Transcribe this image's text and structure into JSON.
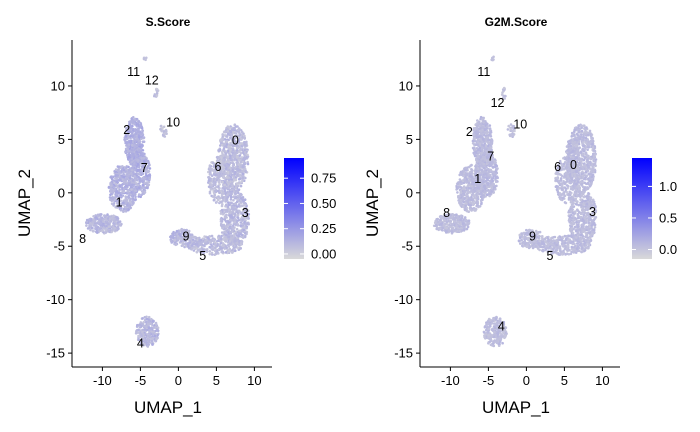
{
  "colors": {
    "low": "#d9d9d9",
    "high": "#0000ff",
    "axis": "#000000",
    "background": "#ffffff"
  },
  "chart_data": [
    {
      "type": "scatter",
      "title": "S.Score",
      "xlabel": "UMAP_1",
      "ylabel": "UMAP_2",
      "xlim": [
        -14,
        11
      ],
      "ylim": [
        -16.3,
        14.3
      ],
      "xticks": [
        -10,
        -5,
        0,
        5,
        10
      ],
      "yticks": [
        10,
        5,
        0,
        -5,
        -10,
        -15
      ],
      "grid": false,
      "color_scale": {
        "name": "S.Score",
        "min": -0.05,
        "max": 0.95,
        "ticks": [
          "0.75",
          "0.50",
          "0.25",
          "0.00"
        ],
        "tick_values": [
          0.75,
          0.5,
          0.25,
          0.0
        ]
      },
      "cluster_labels": [
        {
          "label": "0",
          "x": 7.5,
          "y": 4.9
        },
        {
          "label": "1",
          "x": -7.8,
          "y": -0.9
        },
        {
          "label": "2",
          "x": -6.8,
          "y": 5.9
        },
        {
          "label": "3",
          "x": 8.8,
          "y": -1.9
        },
        {
          "label": "4",
          "x": -5.0,
          "y": -14.1
        },
        {
          "label": "5",
          "x": 3.2,
          "y": -5.9
        },
        {
          "label": "6",
          "x": 5.2,
          "y": 2.4
        },
        {
          "label": "7",
          "x": -4.5,
          "y": 2.3
        },
        {
          "label": "8",
          "x": -12.6,
          "y": -4.3
        },
        {
          "label": "9",
          "x": 1.0,
          "y": -4.1
        },
        {
          "label": "10",
          "x": -0.7,
          "y": 6.6
        },
        {
          "label": "11",
          "x": -5.9,
          "y": 11.3
        },
        {
          "label": "12",
          "x": -3.5,
          "y": 10.5
        }
      ],
      "clusters": [
        {
          "id": "0",
          "cx": 7.2,
          "cy": 3.2,
          "rx": 2.0,
          "ry": 3.2,
          "n": 650,
          "value": 0.08
        },
        {
          "id": "6",
          "cx": 5.4,
          "cy": 1.2,
          "rx": 1.6,
          "ry": 2.2,
          "n": 260,
          "value": 0.07
        },
        {
          "id": "3",
          "cx": 7.4,
          "cy": -2.4,
          "rx": 1.9,
          "ry": 2.6,
          "n": 430,
          "value": 0.09
        },
        {
          "id": "5",
          "cx": 4.8,
          "cy": -4.9,
          "rx": 3.6,
          "ry": 0.9,
          "n": 300,
          "value": 0.08
        },
        {
          "id": "9",
          "cx": 0.6,
          "cy": -4.3,
          "rx": 1.7,
          "ry": 0.9,
          "n": 150,
          "value": 0.1
        },
        {
          "id": "2",
          "cx": -5.8,
          "cy": 4.8,
          "rx": 1.3,
          "ry": 2.3,
          "n": 380,
          "value": 0.14
        },
        {
          "id": "7",
          "cx": -5.2,
          "cy": 1.8,
          "rx": 1.5,
          "ry": 2.2,
          "n": 310,
          "value": 0.13
        },
        {
          "id": "1",
          "cx": -7.3,
          "cy": 0.4,
          "rx": 1.9,
          "ry": 2.2,
          "n": 430,
          "value": 0.12
        },
        {
          "id": "8",
          "cx": -9.8,
          "cy": -2.9,
          "rx": 2.4,
          "ry": 0.9,
          "n": 260,
          "value": 0.1
        },
        {
          "id": "4",
          "cx": -4.1,
          "cy": -13.0,
          "rx": 1.5,
          "ry": 1.4,
          "n": 240,
          "value": 0.1
        },
        {
          "id": "10",
          "cx": -2.0,
          "cy": 5.8,
          "rx": 0.5,
          "ry": 0.6,
          "n": 24,
          "value": 0.05
        },
        {
          "id": "12",
          "cx": -2.9,
          "cy": 9.3,
          "rx": 0.3,
          "ry": 0.6,
          "n": 14,
          "value": 0.05
        },
        {
          "id": "11",
          "cx": -4.5,
          "cy": 12.6,
          "rx": 0.3,
          "ry": 0.2,
          "n": 5,
          "value": 0.05
        }
      ]
    },
    {
      "type": "scatter",
      "title": "G2M.Score",
      "xlabel": "UMAP_1",
      "ylabel": "UMAP_2",
      "xlim": [
        -14,
        11
      ],
      "ylim": [
        -16.3,
        14.3
      ],
      "xticks": [
        -10,
        -5,
        0,
        5,
        10
      ],
      "yticks": [
        10,
        5,
        0,
        -5,
        -10,
        -15
      ],
      "grid": false,
      "color_scale": {
        "name": "G2M.Score",
        "min": -0.15,
        "max": 1.45,
        "ticks": [
          "1.0",
          "0.5",
          "0.0"
        ],
        "tick_values": [
          1.0,
          0.5,
          0.0
        ]
      },
      "cluster_labels": [
        {
          "label": "0",
          "x": 6.2,
          "y": 2.6
        },
        {
          "label": "1",
          "x": -6.4,
          "y": 1.3
        },
        {
          "label": "2",
          "x": -7.5,
          "y": 5.7
        },
        {
          "label": "3",
          "x": 8.7,
          "y": -1.8
        },
        {
          "label": "4",
          "x": -3.3,
          "y": -12.5
        },
        {
          "label": "5",
          "x": 3.1,
          "y": -5.9
        },
        {
          "label": "6",
          "x": 4.1,
          "y": 2.4
        },
        {
          "label": "7",
          "x": -4.7,
          "y": 3.4
        },
        {
          "label": "8",
          "x": -10.5,
          "y": -1.9
        },
        {
          "label": "9",
          "x": 0.8,
          "y": -4.1
        },
        {
          "label": "10",
          "x": -0.8,
          "y": 6.4
        },
        {
          "label": "11",
          "x": -5.6,
          "y": 11.3
        },
        {
          "label": "12",
          "x": -3.8,
          "y": 8.4
        }
      ],
      "clusters": [
        {
          "id": "0",
          "cx": 7.2,
          "cy": 3.2,
          "rx": 2.0,
          "ry": 3.2,
          "n": 650,
          "value": 0.06
        },
        {
          "id": "6",
          "cx": 5.4,
          "cy": 1.2,
          "rx": 1.6,
          "ry": 2.2,
          "n": 260,
          "value": 0.05
        },
        {
          "id": "3",
          "cx": 7.4,
          "cy": -2.4,
          "rx": 1.9,
          "ry": 2.6,
          "n": 430,
          "value": 0.06
        },
        {
          "id": "5",
          "cx": 4.8,
          "cy": -4.9,
          "rx": 3.6,
          "ry": 0.9,
          "n": 300,
          "value": 0.05
        },
        {
          "id": "9",
          "cx": 0.6,
          "cy": -4.3,
          "rx": 1.7,
          "ry": 0.9,
          "n": 150,
          "value": 0.05
        },
        {
          "id": "2",
          "cx": -5.8,
          "cy": 4.8,
          "rx": 1.3,
          "ry": 2.3,
          "n": 380,
          "value": 0.07
        },
        {
          "id": "7",
          "cx": -5.2,
          "cy": 1.8,
          "rx": 1.5,
          "ry": 2.2,
          "n": 310,
          "value": 0.07
        },
        {
          "id": "1",
          "cx": -7.3,
          "cy": 0.4,
          "rx": 1.9,
          "ry": 2.2,
          "n": 430,
          "value": 0.06
        },
        {
          "id": "8",
          "cx": -9.8,
          "cy": -2.9,
          "rx": 2.4,
          "ry": 0.9,
          "n": 260,
          "value": 0.05
        },
        {
          "id": "4",
          "cx": -4.1,
          "cy": -13.0,
          "rx": 1.5,
          "ry": 1.4,
          "n": 240,
          "value": 0.05
        },
        {
          "id": "10",
          "cx": -2.0,
          "cy": 5.8,
          "rx": 0.5,
          "ry": 0.6,
          "n": 24,
          "value": 0.03
        },
        {
          "id": "12",
          "cx": -2.9,
          "cy": 9.3,
          "rx": 0.3,
          "ry": 0.6,
          "n": 14,
          "value": 0.03
        },
        {
          "id": "11",
          "cx": -4.5,
          "cy": 12.6,
          "rx": 0.3,
          "ry": 0.2,
          "n": 5,
          "value": 0.03
        }
      ]
    }
  ]
}
